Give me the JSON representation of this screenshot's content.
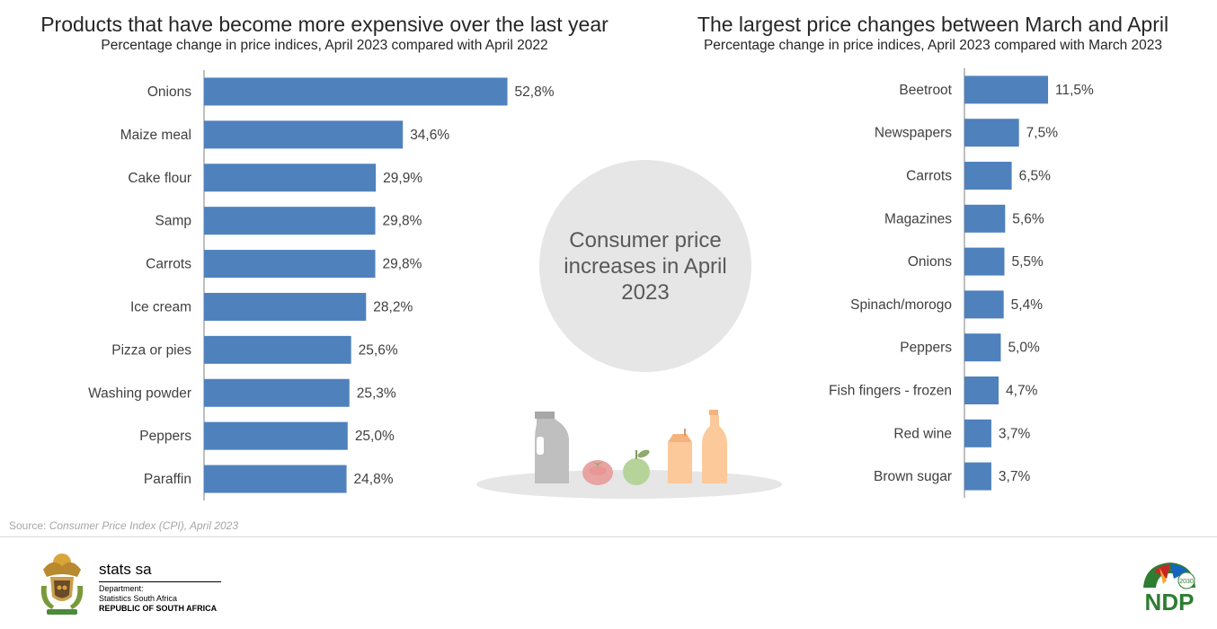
{
  "chart_data": [
    {
      "type": "bar",
      "orientation": "horizontal",
      "title": "Products that have become more expensive over the last year",
      "subtitle": "Percentage change in price indices, April 2023 compared with April 2022",
      "categories": [
        "Onions",
        "Maize meal",
        "Cake flour",
        "Samp",
        "Carrots",
        "Ice cream",
        "Pizza or pies",
        "Washing powder",
        "Peppers",
        "Paraffin"
      ],
      "values": [
        52.8,
        34.6,
        29.9,
        29.8,
        29.8,
        28.2,
        25.6,
        25.3,
        25.0,
        24.8
      ],
      "value_labels": [
        "52,8%",
        "34,6%",
        "29,9%",
        "29,8%",
        "29,8%",
        "28,2%",
        "25,6%",
        "25,3%",
        "25,0%",
        "24,8%"
      ],
      "unit": "%",
      "bar_color": "#4f81bd",
      "grid": false,
      "legend": "none"
    },
    {
      "type": "bar",
      "orientation": "horizontal",
      "title": "The largest price changes between March and April",
      "subtitle": "Percentage change in price indices, April 2023 compared with March 2023",
      "categories": [
        "Beetroot",
        "Newspapers",
        "Carrots",
        "Magazines",
        "Onions",
        "Spinach/morogo",
        "Peppers",
        "Fish fingers - frozen",
        "Red wine",
        "Brown sugar"
      ],
      "values": [
        11.5,
        7.5,
        6.5,
        5.6,
        5.5,
        5.4,
        5.0,
        4.7,
        3.7,
        3.7
      ],
      "value_labels": [
        "11,5%",
        "7,5%",
        "6,5%",
        "5,6%",
        "5,5%",
        "5,4%",
        "5,0%",
        "4,7%",
        "3,7%",
        "3,7%"
      ],
      "unit": "%",
      "bar_color": "#4f81bd",
      "grid": false,
      "legend": "none"
    }
  ],
  "center": {
    "text": "Consumer price increases in April 2023"
  },
  "illustration": {
    "items": [
      "jug-icon",
      "tomato-icon",
      "apple-icon",
      "juice-carton-icon",
      "bottle-icon"
    ]
  },
  "source": {
    "prefix": "Source: ",
    "title": "Consumer Price Index (CPI), April 2023"
  },
  "footer": {
    "org_name": "stats sa",
    "dept_line1": "Department:",
    "dept_line2": "Statistics South Africa",
    "dept_line3": "REPUBLIC OF SOUTH AFRICA",
    "ndp_text": "NDP",
    "ndp_year": "2030"
  },
  "colors": {
    "bar": "#4f81bd",
    "circle": "#e6e6e6",
    "text": "#404040"
  }
}
